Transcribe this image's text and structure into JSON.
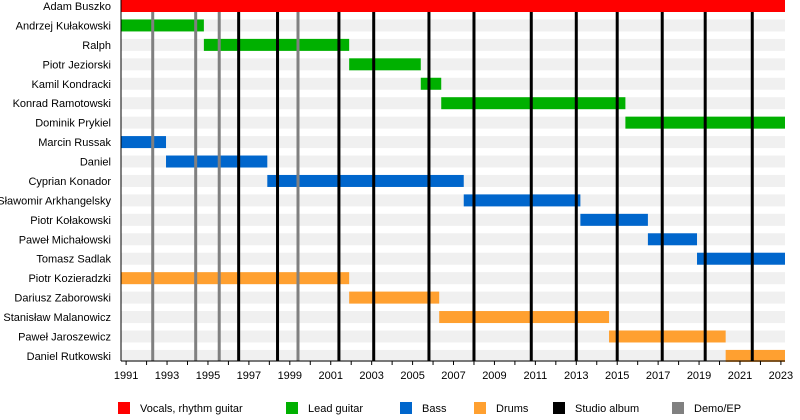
{
  "chart_data": {
    "type": "bar",
    "subtype": "timeline",
    "xlim": [
      1990.75,
      2023.2
    ],
    "x_ticks": [
      1991,
      1993,
      1995,
      1997,
      1999,
      2001,
      2003,
      2005,
      2007,
      2009,
      2011,
      2013,
      2015,
      2017,
      2019,
      2021,
      2023
    ],
    "colors": {
      "Vocals, rhythm guitar": "#ff0000",
      "Lead guitar": "#00b000",
      "Bass": "#0066cc",
      "Drums": "#ffa030",
      "Studio album": "#000000",
      "Demo/EP": "#808080",
      "stripe": "#f0f0f0"
    },
    "members": [
      {
        "name": "Adam Buszko",
        "role": "Vocals, rhythm guitar",
        "start": 1990.75,
        "end": 2023.2
      },
      {
        "name": "Andrzej Kułakowski",
        "role": "Lead guitar",
        "start": 1990.75,
        "end": 1994.8
      },
      {
        "name": "Ralph",
        "role": "Lead guitar",
        "start": 1994.8,
        "end": 2001.9
      },
      {
        "name": "Piotr Jeziorski",
        "role": "Lead guitar",
        "start": 2001.9,
        "end": 2005.4
      },
      {
        "name": "Kamil Kondracki",
        "role": "Lead guitar",
        "start": 2005.4,
        "end": 2006.4
      },
      {
        "name": "Konrad Ramotowski",
        "role": "Lead guitar",
        "start": 2006.4,
        "end": 2015.4
      },
      {
        "name": "Dominik Prykiel",
        "role": "Lead guitar",
        "start": 2015.4,
        "end": 2023.2
      },
      {
        "name": "Marcin Russak",
        "role": "Bass",
        "start": 1990.75,
        "end": 1992.95
      },
      {
        "name": "Daniel",
        "role": "Bass",
        "start": 1992.95,
        "end": 1997.9
      },
      {
        "name": "Cyprian Konador",
        "role": "Bass",
        "start": 1997.9,
        "end": 2007.5
      },
      {
        "name": "Sławomir Arkhangelsky",
        "role": "Bass",
        "start": 2007.5,
        "end": 2013.2
      },
      {
        "name": "Piotr Kołakowski",
        "role": "Bass",
        "start": 2013.2,
        "end": 2016.5
      },
      {
        "name": "Paweł Michałowski",
        "role": "Bass",
        "start": 2016.5,
        "end": 2018.9
      },
      {
        "name": "Tomasz Sadlak",
        "role": "Bass",
        "start": 2018.9,
        "end": 2023.2
      },
      {
        "name": "Piotr Kozieradzki",
        "role": "Drums",
        "start": 1990.75,
        "end": 2001.9
      },
      {
        "name": "Dariusz Zaborowski",
        "role": "Drums",
        "start": 2001.9,
        "end": 2006.3
      },
      {
        "name": "Stanisław Malanowicz",
        "role": "Drums",
        "start": 2006.3,
        "end": 2014.6
      },
      {
        "name": "Paweł Jaroszewicz",
        "role": "Drums",
        "start": 2014.6,
        "end": 2020.3
      },
      {
        "name": "Daniel Rutkowski",
        "role": "Drums",
        "start": 2020.3,
        "end": 2023.2
      }
    ],
    "releases": [
      {
        "type": "Demo/EP",
        "year": 1992.3
      },
      {
        "type": "Demo/EP",
        "year": 1994.4
      },
      {
        "type": "Demo/EP",
        "year": 1995.55
      },
      {
        "type": "Studio album",
        "year": 1996.5
      },
      {
        "type": "Studio album",
        "year": 1998.4
      },
      {
        "type": "Demo/EP",
        "year": 1999.4
      },
      {
        "type": "Studio album",
        "year": 2001.4
      },
      {
        "type": "Studio album",
        "year": 2003.1
      },
      {
        "type": "Studio album",
        "year": 2005.8
      },
      {
        "type": "Studio album",
        "year": 2008.0
      },
      {
        "type": "Studio album",
        "year": 2010.8
      },
      {
        "type": "Studio album",
        "year": 2013.0
      },
      {
        "type": "Studio album",
        "year": 2015.0
      },
      {
        "type": "Studio album",
        "year": 2017.2
      },
      {
        "type": "Studio album",
        "year": 2019.3
      },
      {
        "type": "Studio album",
        "year": 2021.6
      }
    ],
    "legend": [
      "Vocals, rhythm guitar",
      "Lead guitar",
      "Bass",
      "Drums",
      "Studio album",
      "Demo/EP"
    ],
    "legend_position": "bottom",
    "grid": false
  }
}
